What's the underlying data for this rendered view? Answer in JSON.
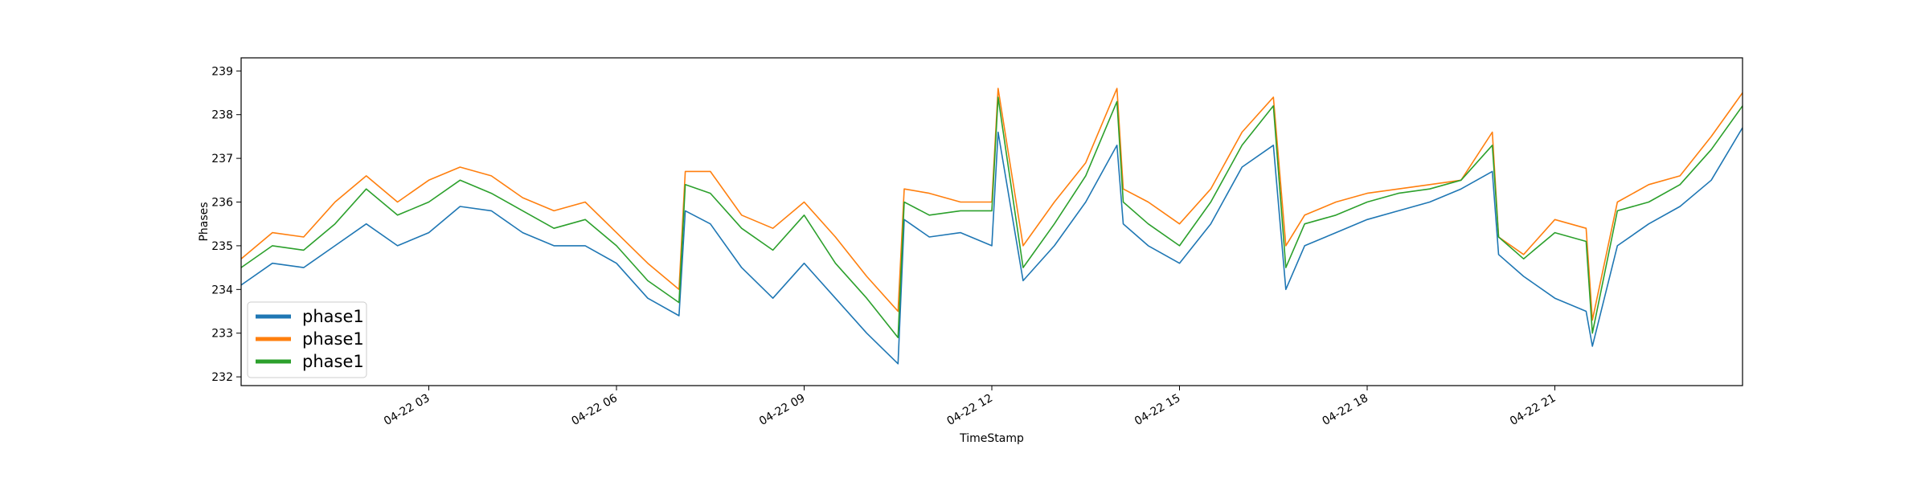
{
  "chart_data": {
    "type": "line",
    "title": "",
    "xlabel": "TimeStamp",
    "ylabel": "Phases",
    "xlim": [
      "04-22 00:00",
      "04-22 24:00"
    ],
    "ylim": [
      231.8,
      239.3
    ],
    "x_ticks": [
      {
        "label": "04-22 03",
        "hours": 3
      },
      {
        "label": "04-22 06",
        "hours": 6
      },
      {
        "label": "04-22 09",
        "hours": 9
      },
      {
        "label": "04-22 12",
        "hours": 12
      },
      {
        "label": "04-22 15",
        "hours": 15
      },
      {
        "label": "04-22 18",
        "hours": 18
      },
      {
        "label": "04-22 21",
        "hours": 21
      }
    ],
    "y_ticks": [
      {
        "label": "232",
        "value": 232
      },
      {
        "label": "233",
        "value": 233
      },
      {
        "label": "234",
        "value": 234
      },
      {
        "label": "235",
        "value": 235
      },
      {
        "label": "236",
        "value": 236
      },
      {
        "label": "237",
        "value": 237
      },
      {
        "label": "238",
        "value": 238
      },
      {
        "label": "239",
        "value": 239
      }
    ],
    "grid": false,
    "legend_position": "lower-left",
    "hours": [
      0,
      0.5,
      1,
      1.5,
      2,
      2.5,
      3,
      3.5,
      4,
      4.5,
      5,
      5.5,
      6,
      6.5,
      7,
      7.1,
      7.5,
      8,
      8.5,
      9,
      9.5,
      10,
      10.5,
      10.6,
      11,
      11.5,
      12,
      12.1,
      12.5,
      13,
      13.5,
      14,
      14.1,
      14.5,
      15,
      15.5,
      16,
      16.5,
      16.7,
      17,
      17.5,
      18,
      18.5,
      19,
      19.5,
      20,
      20.1,
      20.5,
      21,
      21.5,
      21.6,
      22,
      22.5,
      23,
      23.5,
      24
    ],
    "series": [
      {
        "name": "phase1",
        "color": "#1f77b4",
        "values": [
          234.1,
          234.6,
          234.5,
          235.0,
          235.5,
          235.0,
          235.3,
          235.9,
          235.8,
          235.3,
          235.0,
          235.0,
          234.6,
          233.8,
          233.4,
          235.8,
          235.5,
          234.5,
          233.8,
          234.6,
          233.8,
          233.0,
          232.3,
          235.6,
          235.2,
          235.3,
          235.0,
          237.6,
          234.2,
          235.0,
          236.0,
          237.3,
          235.5,
          235.0,
          234.6,
          235.5,
          236.8,
          237.3,
          234.0,
          235.0,
          235.3,
          235.6,
          235.8,
          236.0,
          236.3,
          236.7,
          234.8,
          234.3,
          233.8,
          233.5,
          232.7,
          235.0,
          235.5,
          235.9,
          236.5,
          237.7
        ]
      },
      {
        "name": "phase1",
        "color": "#ff7f0e",
        "values": [
          234.7,
          235.3,
          235.2,
          236.0,
          236.6,
          236.0,
          236.5,
          236.8,
          236.6,
          236.1,
          235.8,
          236.0,
          235.3,
          234.6,
          234.0,
          236.7,
          236.7,
          235.7,
          235.4,
          236.0,
          235.2,
          234.3,
          233.5,
          236.3,
          236.2,
          236.0,
          236.0,
          238.6,
          235.0,
          236.0,
          236.9,
          238.6,
          236.3,
          236.0,
          235.5,
          236.3,
          237.6,
          238.4,
          235.0,
          235.7,
          236.0,
          236.2,
          236.3,
          236.4,
          236.5,
          237.6,
          235.2,
          234.8,
          235.6,
          235.4,
          233.3,
          236.0,
          236.4,
          236.6,
          237.5,
          238.5
        ]
      },
      {
        "name": "phase1",
        "color": "#2ca02c",
        "values": [
          234.5,
          235.0,
          234.9,
          235.5,
          236.3,
          235.7,
          236.0,
          236.5,
          236.2,
          235.8,
          235.4,
          235.6,
          235.0,
          234.2,
          233.7,
          236.4,
          236.2,
          235.4,
          234.9,
          235.7,
          234.6,
          233.8,
          232.9,
          236.0,
          235.7,
          235.8,
          235.8,
          238.4,
          234.5,
          235.5,
          236.6,
          238.3,
          236.0,
          235.5,
          235.0,
          236.0,
          237.3,
          238.2,
          234.5,
          235.5,
          235.7,
          236.0,
          236.2,
          236.3,
          236.5,
          237.3,
          235.2,
          234.7,
          235.3,
          235.1,
          233.0,
          235.8,
          236.0,
          236.4,
          237.2,
          238.2
        ]
      }
    ]
  }
}
